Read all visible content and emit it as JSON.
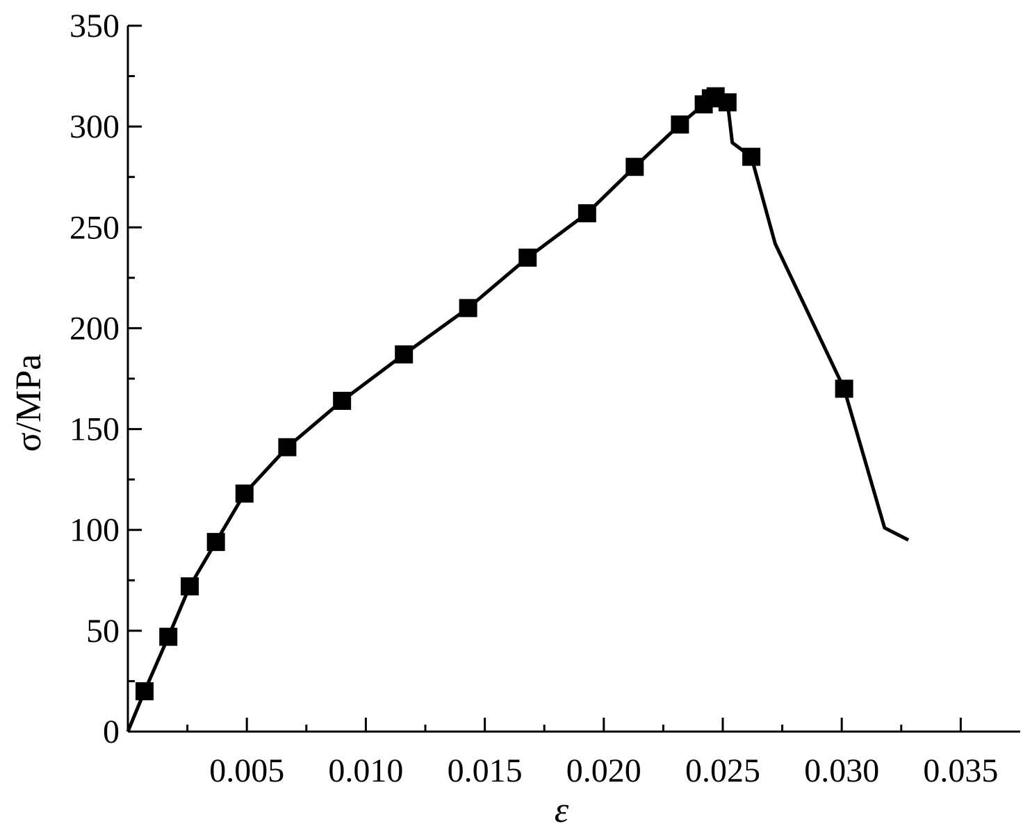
{
  "chart_data": {
    "type": "line",
    "x_label": "ε",
    "y_label": "σ/MPa",
    "xlim": [
      0,
      0.0375
    ],
    "ylim": [
      0,
      350
    ],
    "xticks": [
      0.005,
      {
        "value": 0.01,
        "label": "0.010"
      },
      0.015,
      {
        "value": 0.02,
        "label": "0.020"
      },
      0.025,
      {
        "value": 0.03,
        "label": "0.030"
      },
      0.035
    ],
    "yticks": [
      0,
      50,
      100,
      150,
      200,
      250,
      300,
      350
    ],
    "color": "#000000",
    "series": [
      {
        "marker": false,
        "x": [
          0,
          0.0007,
          0.0017,
          0.0026,
          0.0037,
          0.0049,
          0.0067,
          0.009,
          0.0116,
          0.0143,
          0.0168,
          0.0193,
          0.0213,
          0.0232,
          0.0242,
          0.0245,
          0.0247,
          0.0252,
          0.0254,
          0.0262,
          0.0272,
          0.0301,
          0.0318,
          0.0328
        ],
        "values": [
          0,
          20,
          47,
          72,
          94,
          118,
          141,
          164,
          187,
          210,
          235,
          257,
          280,
          301,
          311,
          314,
          315,
          312,
          292,
          285,
          242,
          170,
          101,
          95
        ]
      },
      {
        "marker": true,
        "x": [
          0.0007,
          0.0017,
          0.0026,
          0.0037,
          0.0049,
          0.0067,
          0.009,
          0.0116,
          0.0143,
          0.0168,
          0.0193,
          0.0213,
          0.0232,
          0.0242,
          0.0245,
          0.0247,
          0.0252,
          0.0262,
          0.0301
        ],
        "values": [
          20,
          47,
          72,
          94,
          118,
          141,
          164,
          187,
          210,
          235,
          257,
          280,
          301,
          311,
          314,
          315,
          312,
          285,
          170
        ]
      }
    ]
  }
}
